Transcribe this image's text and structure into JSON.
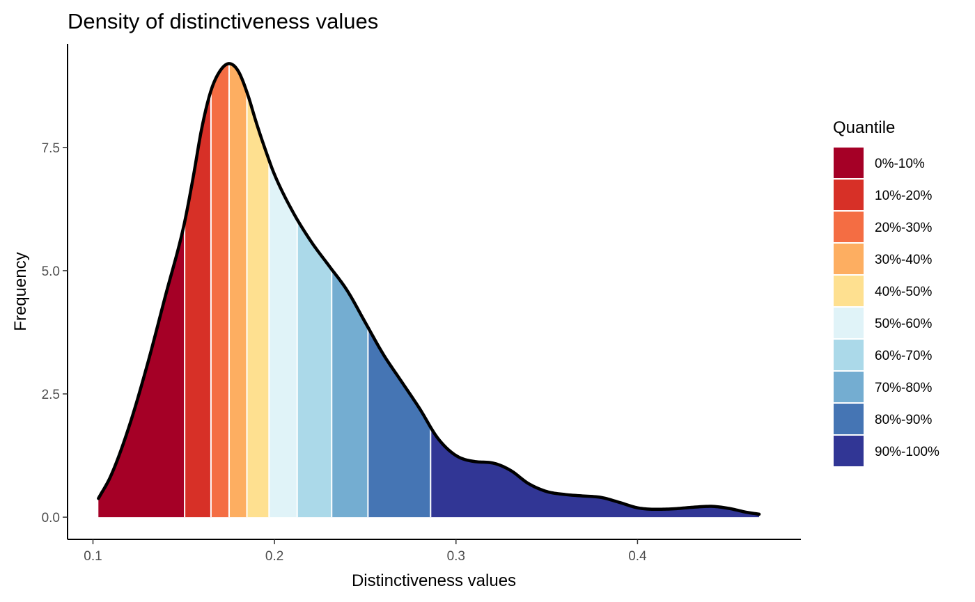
{
  "chart_data": {
    "type": "area",
    "title": "Density of distinctiveness values",
    "xlabel": "Distinctiveness values",
    "ylabel": "Frequency",
    "xlim": [
      0.086,
      0.49
    ],
    "ylim": [
      -0.45,
      9.6
    ],
    "x_ticks": [
      0.1,
      0.2,
      0.3,
      0.4
    ],
    "x_tick_labels": [
      "0.1",
      "0.2",
      "0.3",
      "0.4"
    ],
    "y_ticks": [
      0,
      2.5,
      5,
      7.5
    ],
    "y_tick_labels": [
      "0.0",
      "2.5",
      "5.0",
      "7.5"
    ],
    "grid": false,
    "legend": {
      "title": "Quantile",
      "placement": "right"
    },
    "density_curve": {
      "x": [
        0.103,
        0.11,
        0.12,
        0.13,
        0.14,
        0.15,
        0.155,
        0.16,
        0.165,
        0.17,
        0.175,
        0.18,
        0.185,
        0.19,
        0.195,
        0.2,
        0.21,
        0.22,
        0.23,
        0.24,
        0.25,
        0.26,
        0.27,
        0.28,
        0.29,
        0.3,
        0.31,
        0.32,
        0.33,
        0.34,
        0.35,
        0.36,
        0.37,
        0.38,
        0.39,
        0.4,
        0.41,
        0.42,
        0.43,
        0.44,
        0.45,
        0.46,
        0.467
      ],
      "y": [
        0.38,
        0.85,
        1.85,
        3.1,
        4.5,
        5.9,
        6.85,
        7.9,
        8.65,
        9.05,
        9.2,
        9.05,
        8.6,
        8.0,
        7.45,
        6.95,
        6.2,
        5.6,
        5.1,
        4.6,
        3.95,
        3.3,
        2.75,
        2.2,
        1.6,
        1.25,
        1.13,
        1.1,
        0.95,
        0.68,
        0.52,
        0.46,
        0.43,
        0.4,
        0.3,
        0.19,
        0.16,
        0.17,
        0.2,
        0.22,
        0.18,
        0.1,
        0.06
      ]
    },
    "series": [
      {
        "name": "0%-10%",
        "x_start": 0.103,
        "x_end": 0.1505,
        "color": "#A50026"
      },
      {
        "name": "10%-20%",
        "x_start": 0.1505,
        "x_end": 0.165,
        "color": "#D73027"
      },
      {
        "name": "20%-30%",
        "x_start": 0.165,
        "x_end": 0.175,
        "color": "#F46D43"
      },
      {
        "name": "30%-40%",
        "x_start": 0.175,
        "x_end": 0.1848,
        "color": "#FDAE61"
      },
      {
        "name": "40%-50%",
        "x_start": 0.1848,
        "x_end": 0.197,
        "color": "#FEE090"
      },
      {
        "name": "50%-60%",
        "x_start": 0.197,
        "x_end": 0.2125,
        "color": "#E0F3F8"
      },
      {
        "name": "60%-70%",
        "x_start": 0.2125,
        "x_end": 0.2315,
        "color": "#ABD9E9"
      },
      {
        "name": "70%-80%",
        "x_start": 0.2315,
        "x_end": 0.2515,
        "color": "#74ADD1"
      },
      {
        "name": "80%-90%",
        "x_start": 0.2515,
        "x_end": 0.286,
        "color": "#4575B4"
      },
      {
        "name": "90%-100%",
        "x_start": 0.286,
        "x_end": 0.467,
        "color": "#313695"
      }
    ]
  }
}
